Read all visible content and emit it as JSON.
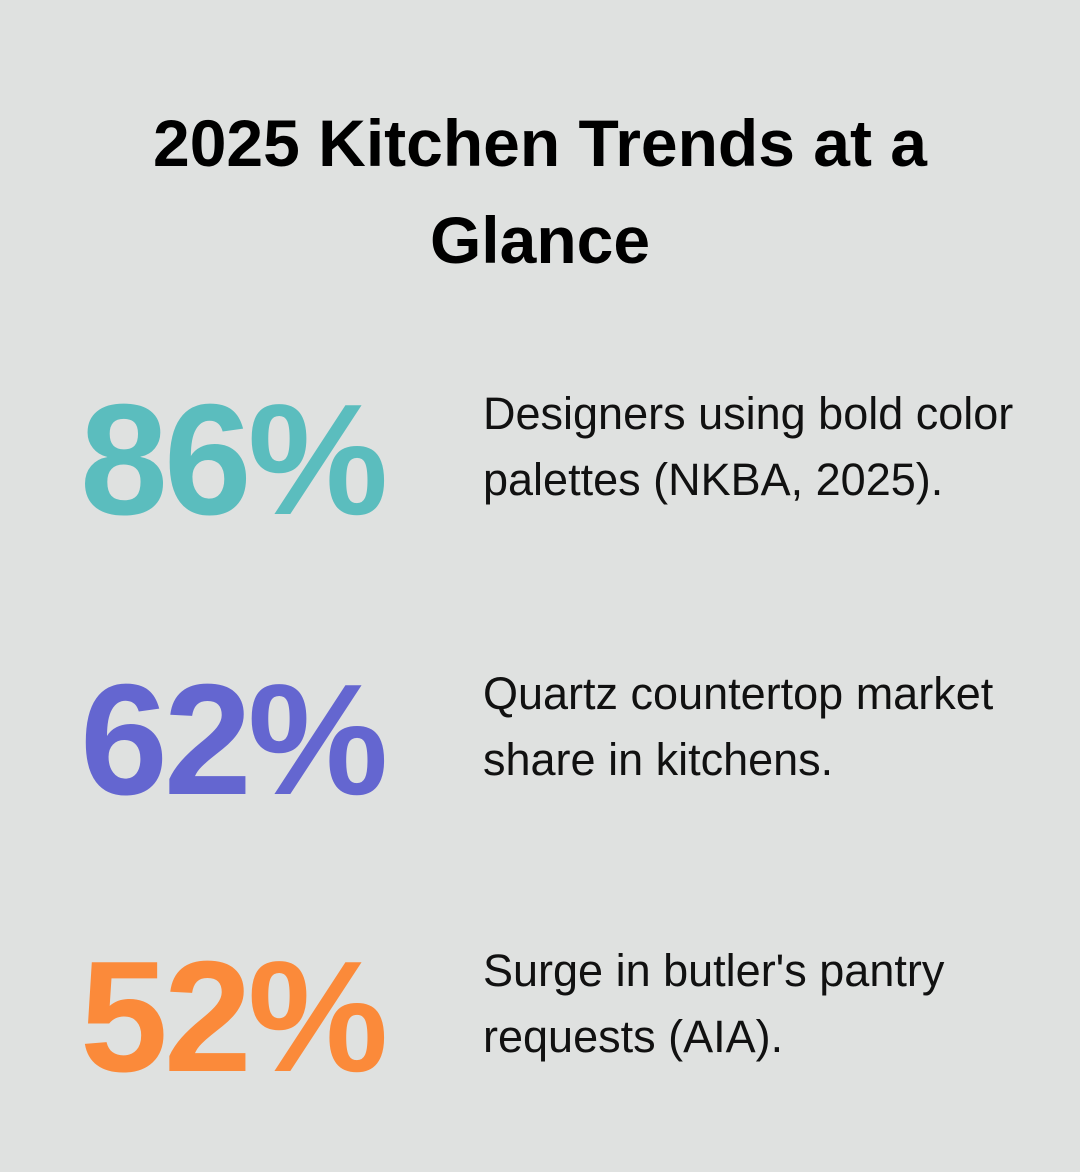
{
  "title": "2025 Kitchen Trends at a Glance",
  "stats": [
    {
      "value": "86%",
      "description": "Designers using bold color palettes (NKBA, 2025).",
      "color": "#5bbdbe"
    },
    {
      "value": "62%",
      "description": "Quartz countertop market share in kitchens.",
      "color": "#6466d0"
    },
    {
      "value": "52%",
      "description": "Surge in butler's pantry requests (AIA).",
      "color": "#fb8a3a"
    }
  ]
}
